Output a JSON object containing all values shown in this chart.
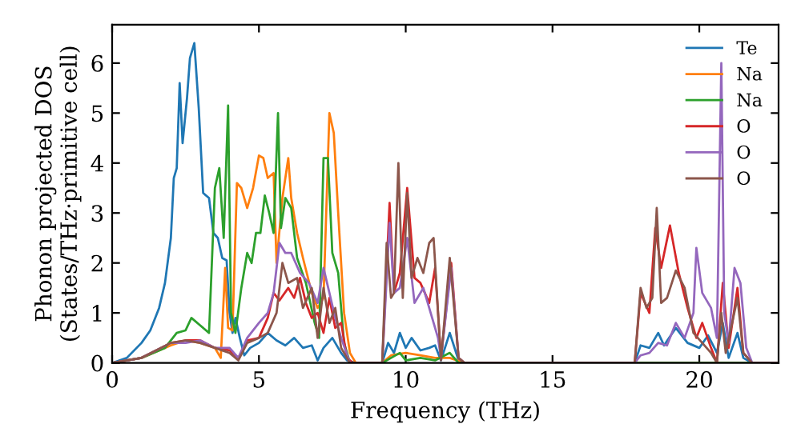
{
  "chart_data": {
    "type": "line",
    "xlabel": "Frequency (THz)",
    "ylabel": "Phonon projected DOS\n(States/THz·primitive cell)",
    "xlim": [
      0,
      22.7
    ],
    "ylim": [
      0,
      6.77
    ],
    "xticks": [
      0,
      5,
      10,
      15,
      20
    ],
    "yticks": [
      0,
      1,
      2,
      3,
      4,
      5,
      6
    ],
    "grid": false,
    "legend": "top right",
    "marker": "none",
    "line_style": "solid",
    "series": [
      {
        "name": "Te",
        "color": "#1f77b4",
        "x": [
          0,
          0.5,
          1,
          1.3,
          1.6,
          1.8,
          2.0,
          2.1,
          2.2,
          2.3,
          2.4,
          2.55,
          2.65,
          2.8,
          2.95,
          3.1,
          3.3,
          3.45,
          3.6,
          3.75,
          3.9,
          4.0,
          4.1,
          4.2,
          4.35,
          4.5,
          4.7,
          5.0,
          5.3,
          5.6,
          5.9,
          6.2,
          6.5,
          6.8,
          7.0,
          7.2,
          7.5,
          7.8,
          8.0,
          8.3,
          9.2,
          9.4,
          9.6,
          9.8,
          10.0,
          10.2,
          10.5,
          10.8,
          11.0,
          11.2,
          11.5,
          11.8,
          12.0,
          17.8,
          18.0,
          18.3,
          18.6,
          18.8,
          19.2,
          19.6,
          20.0,
          20.3,
          20.6,
          20.8,
          21.0,
          21.3,
          21.5,
          21.8,
          22.7
        ],
        "values": [
          0,
          0.1,
          0.4,
          0.65,
          1.1,
          1.6,
          2.5,
          3.7,
          3.9,
          5.6,
          4.4,
          5.3,
          6.1,
          6.4,
          5.1,
          3.4,
          3.3,
          2.6,
          2.5,
          2.1,
          2.05,
          1.0,
          0.6,
          0.9,
          0.5,
          0.15,
          0.3,
          0.4,
          0.6,
          0.45,
          0.35,
          0.5,
          0.3,
          0.35,
          0.05,
          0.3,
          0.5,
          0.2,
          0.05,
          0,
          0,
          0.4,
          0.2,
          0.6,
          0.3,
          0.5,
          0.25,
          0.3,
          0.35,
          0.05,
          0.6,
          0.05,
          0,
          0,
          0.35,
          0.3,
          0.6,
          0.35,
          0.7,
          0.4,
          0.3,
          0.55,
          0.2,
          0.8,
          0.1,
          0.6,
          0.1,
          0,
          0
        ]
      },
      {
        "name": "Na",
        "color": "#ff7f0e",
        "x": [
          0,
          1,
          2,
          2.5,
          3,
          3.5,
          3.7,
          3.85,
          3.95,
          4.1,
          4.25,
          4.4,
          4.6,
          4.8,
          5.0,
          5.15,
          5.3,
          5.5,
          5.6,
          5.8,
          6.0,
          6.1,
          6.3,
          6.5,
          6.8,
          7.0,
          7.2,
          7.4,
          7.55,
          7.7,
          7.9,
          8.1,
          8.3,
          9.2,
          9.5,
          10,
          10.5,
          11,
          11.5,
          12,
          22.7
        ],
        "values": [
          0,
          0.1,
          0.35,
          0.45,
          0.4,
          0.3,
          0.1,
          1.9,
          0.7,
          0.65,
          3.6,
          3.5,
          3.1,
          3.5,
          4.15,
          4.1,
          3.7,
          3.8,
          2.0,
          3.3,
          4.1,
          3.3,
          2.6,
          2.1,
          1.4,
          1.1,
          1.3,
          5.0,
          4.6,
          3.0,
          1.0,
          0.2,
          0,
          0,
          0.15,
          0.2,
          0.15,
          0.1,
          0.1,
          0,
          0
        ]
      },
      {
        "name": "Na",
        "color": "#2ca02c",
        "x": [
          0,
          1,
          1.8,
          2.2,
          2.5,
          2.7,
          3.0,
          3.3,
          3.5,
          3.65,
          3.8,
          3.95,
          4.05,
          4.2,
          4.4,
          4.6,
          4.75,
          4.9,
          5.05,
          5.2,
          5.35,
          5.5,
          5.65,
          5.75,
          5.9,
          6.1,
          6.3,
          6.6,
          6.9,
          7.05,
          7.2,
          7.35,
          7.5,
          7.7,
          7.9,
          8.1,
          9.2,
          9.5,
          9.8,
          10,
          10.5,
          11,
          11.5,
          11.8,
          22.7
        ],
        "values": [
          0,
          0.1,
          0.3,
          0.6,
          0.65,
          0.9,
          0.75,
          0.6,
          3.5,
          3.9,
          2.5,
          5.15,
          1.0,
          0.6,
          1.5,
          2.2,
          2.0,
          2.6,
          2.6,
          3.35,
          3.0,
          2.6,
          5.0,
          2.7,
          3.3,
          3.1,
          2.1,
          1.6,
          0.8,
          0.5,
          4.1,
          4.1,
          2.2,
          1.8,
          0.4,
          0,
          0,
          0.1,
          0.2,
          0.05,
          0.1,
          0.05,
          0.2,
          0,
          0
        ]
      },
      {
        "name": "O",
        "color": "#d62728",
        "x": [
          0,
          1,
          2,
          2.5,
          3,
          3.5,
          4.0,
          4.3,
          4.6,
          5.0,
          5.3,
          5.5,
          5.7,
          6.0,
          6.2,
          6.4,
          6.6,
          6.8,
          7.0,
          7.2,
          7.4,
          7.6,
          7.8,
          8.0,
          8.2,
          9.2,
          9.45,
          9.6,
          9.8,
          10.05,
          10.3,
          10.5,
          10.8,
          11.0,
          11.2,
          11.55,
          11.8,
          12,
          17.8,
          18.0,
          18.3,
          18.5,
          18.7,
          19.0,
          19.3,
          19.6,
          19.9,
          20.1,
          20.4,
          20.6,
          20.8,
          21.0,
          21.3,
          21.5,
          21.8,
          22.7
        ],
        "values": [
          0,
          0.1,
          0.4,
          0.45,
          0.45,
          0.3,
          0.25,
          0.1,
          0.45,
          0.5,
          0.9,
          1.4,
          1.25,
          1.5,
          1.3,
          1.7,
          1.2,
          0.9,
          1.0,
          0.6,
          1.3,
          0.7,
          0.8,
          0.1,
          0,
          0,
          3.2,
          1.4,
          1.8,
          3.5,
          1.7,
          1.6,
          1.2,
          1.9,
          0.1,
          2.0,
          0.1,
          0,
          0,
          1.4,
          1.0,
          2.7,
          1.9,
          2.75,
          1.8,
          1.1,
          0.5,
          0.8,
          0.3,
          0,
          1.6,
          0.3,
          1.5,
          0.2,
          0,
          0
        ]
      },
      {
        "name": "O",
        "color": "#9467bd",
        "x": [
          0,
          1,
          2,
          2.5,
          3,
          3.5,
          4.0,
          4.3,
          4.6,
          5.0,
          5.3,
          5.5,
          5.7,
          5.9,
          6.1,
          6.4,
          6.7,
          7.0,
          7.2,
          7.4,
          7.6,
          7.8,
          8.1,
          9.2,
          9.45,
          9.6,
          9.8,
          10.05,
          10.3,
          10.6,
          10.9,
          11.1,
          11.2,
          11.55,
          11.8,
          12,
          17.8,
          18.0,
          18.3,
          18.6,
          18.9,
          19.2,
          19.5,
          19.8,
          19.9,
          20.1,
          20.4,
          20.6,
          20.75,
          20.85,
          21.0,
          21.2,
          21.4,
          21.6,
          21.8,
          22.7
        ],
        "values": [
          0,
          0.1,
          0.4,
          0.4,
          0.45,
          0.3,
          0.3,
          0.1,
          0.5,
          0.8,
          1.0,
          1.4,
          2.4,
          2.2,
          2.2,
          1.8,
          1.6,
          1.2,
          1.9,
          1.4,
          0.9,
          0.5,
          0,
          0,
          2.8,
          1.4,
          1.5,
          2.5,
          1.2,
          1.5,
          0.9,
          0.5,
          0.1,
          1.9,
          0.1,
          0,
          0,
          0.15,
          0.2,
          0.4,
          0.35,
          0.8,
          0.5,
          1.0,
          2.3,
          1.4,
          1.1,
          0.5,
          6.0,
          1.0,
          0.4,
          1.9,
          1.6,
          0.3,
          0,
          0
        ]
      },
      {
        "name": "O",
        "color": "#8c564b",
        "x": [
          0,
          1,
          2,
          2.5,
          3,
          3.5,
          4.0,
          4.3,
          4.6,
          5.0,
          5.3,
          5.6,
          5.8,
          6.0,
          6.3,
          6.5,
          6.8,
          7.0,
          7.2,
          7.4,
          7.6,
          7.8,
          8.1,
          9.2,
          9.35,
          9.5,
          9.6,
          9.75,
          9.9,
          10.05,
          10.2,
          10.4,
          10.6,
          10.8,
          10.95,
          11.2,
          11.5,
          11.8,
          12,
          17.8,
          18.0,
          18.2,
          18.4,
          18.55,
          18.7,
          18.9,
          19.2,
          19.5,
          19.8,
          20.1,
          20.4,
          20.6,
          20.75,
          20.9,
          21.3,
          21.5,
          21.8,
          22.7
        ],
        "values": [
          0,
          0.1,
          0.4,
          0.45,
          0.4,
          0.3,
          0.2,
          0.05,
          0.4,
          0.5,
          0.6,
          1.0,
          2.0,
          1.6,
          1.7,
          1.1,
          1.5,
          0.5,
          1.5,
          0.8,
          1.1,
          0.3,
          0,
          0,
          2.4,
          1.3,
          1.4,
          4.0,
          1.3,
          3.4,
          1.7,
          2.1,
          1.8,
          2.4,
          2.5,
          0.05,
          2.1,
          0.1,
          0,
          0,
          1.5,
          1.1,
          1.3,
          3.1,
          1.2,
          1.3,
          1.85,
          1.5,
          0.6,
          0.4,
          0.2,
          0,
          1.0,
          0.2,
          1.3,
          0.2,
          0,
          0
        ]
      }
    ]
  }
}
